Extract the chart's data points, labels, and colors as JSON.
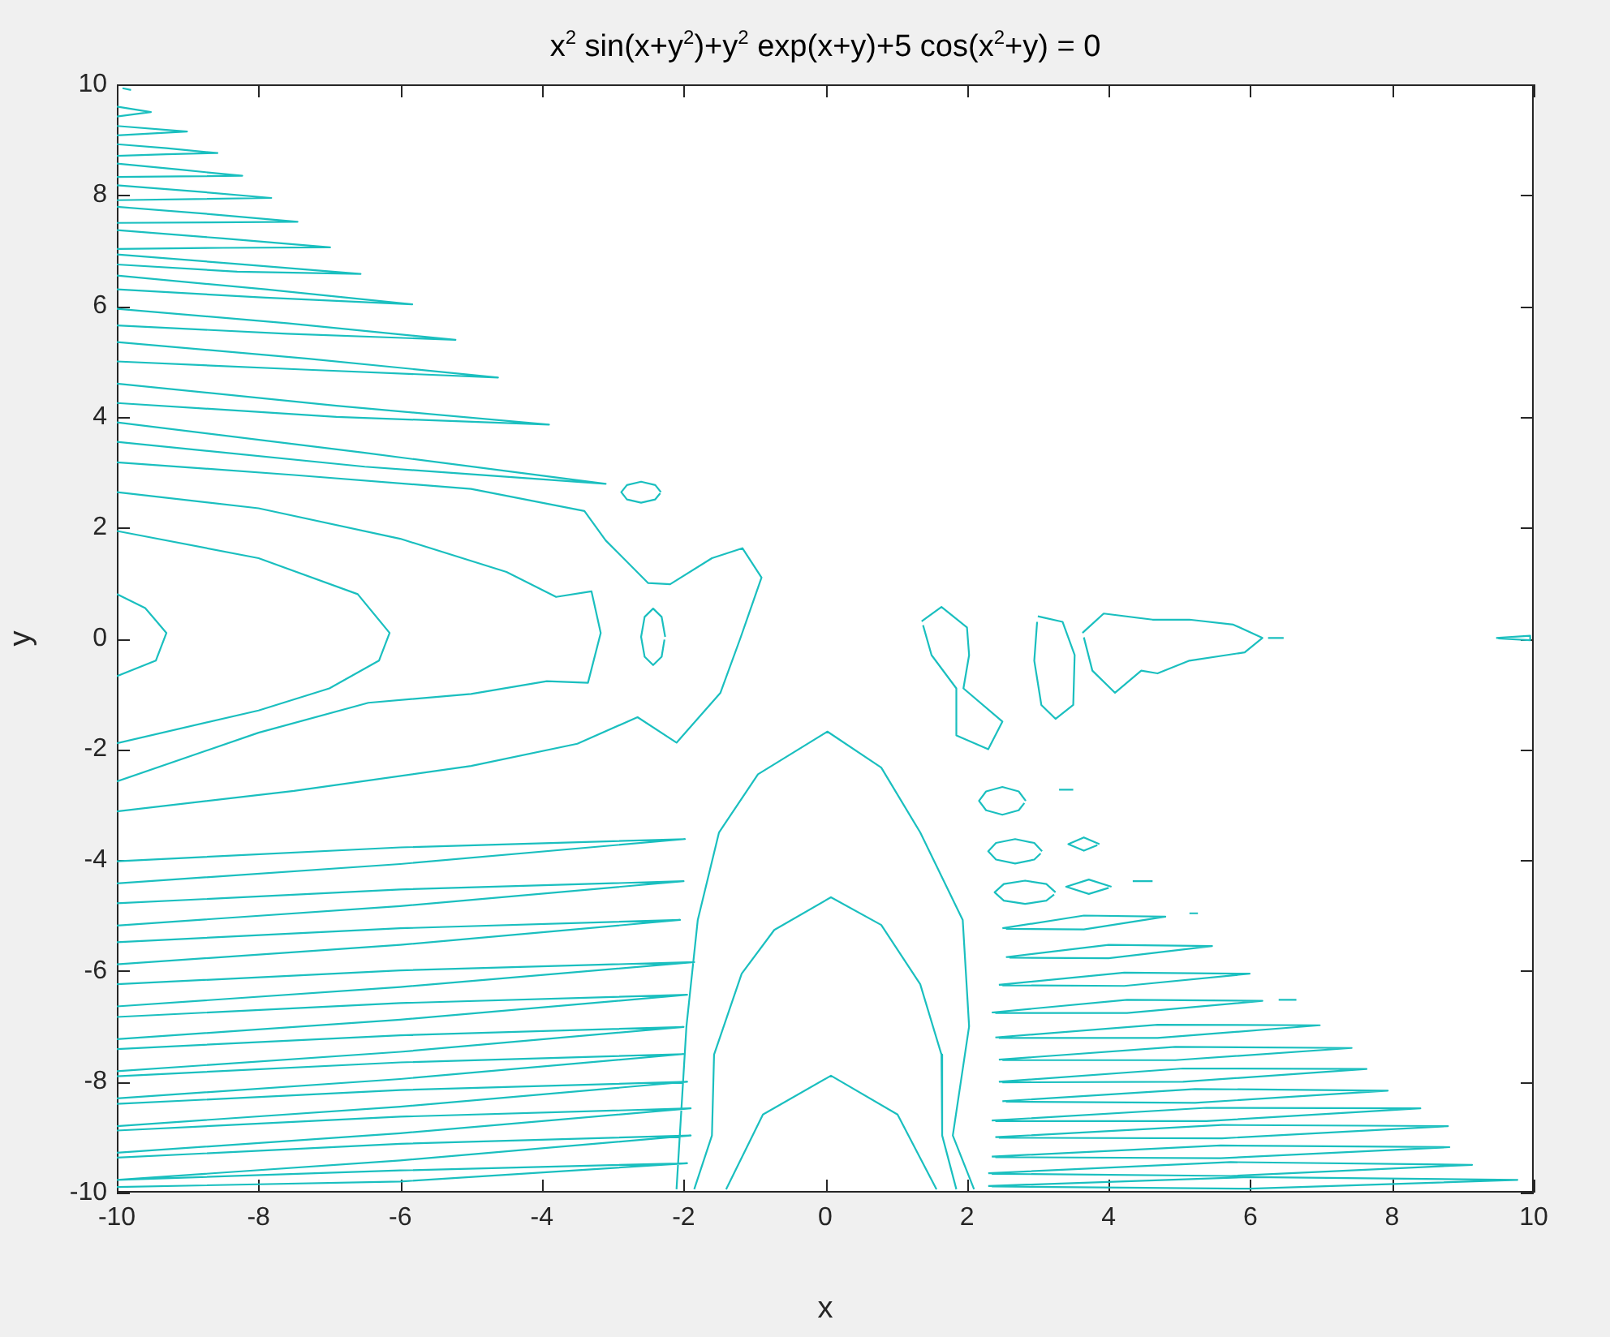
{
  "chart_data": {
    "type": "line",
    "title": "x$^{2}$ sin(x+y$^{2}$)+y$^{2}$ exp(x+y)+5 cos(x$^{2}$+y) = 0",
    "xlabel": "x",
    "ylabel": "y",
    "xlim": [
      -10,
      10
    ],
    "ylim": [
      -10,
      10
    ],
    "xticks": [
      -10,
      -8,
      -6,
      -4,
      -2,
      0,
      2,
      4,
      6,
      8,
      10
    ],
    "yticks": [
      -10,
      -8,
      -6,
      -4,
      -2,
      0,
      2,
      4,
      6,
      8,
      10
    ],
    "series": [
      {
        "color": "#1abfbf",
        "x": [
          -9.92,
          -9.8,
          null,
          -10,
          -9.52,
          -10,
          null,
          -10,
          -9.01,
          -10,
          null,
          -10,
          -9.3,
          -8.58,
          -9.3,
          -10,
          null,
          -10,
          -9.1,
          -8.23,
          -9.1,
          -10,
          null,
          -10,
          -8.9,
          -7.82,
          -8.9,
          -10,
          null,
          -10,
          -8.7,
          -7.45,
          -8.7,
          -10,
          null,
          -10,
          -8.5,
          -6.99,
          -8.5,
          -10,
          null,
          -10,
          -8.3,
          -6.56,
          -8.3,
          -10,
          null,
          -10,
          -7.9,
          -5.83,
          -7.9,
          -10,
          null,
          -10,
          -7.6,
          -5.22,
          -7.6,
          -10,
          null,
          -10,
          -7.3,
          -4.62,
          -7.3,
          -10,
          null,
          -10,
          -6.9,
          -3.9,
          -6.9,
          -10,
          null,
          -10,
          -6.5,
          -3.1,
          -6.5,
          -10,
          null,
          -10,
          -8,
          -6.6,
          -6.15,
          -6.3,
          -7,
          -8,
          -10,
          null,
          -10,
          -8,
          -6,
          -4.5,
          -3.8,
          -3.3,
          -3.17,
          -3.35,
          -3.93,
          -5,
          -6.45,
          -8,
          -10,
          null,
          -10,
          -7.5,
          -5,
          -3.4,
          -3.1,
          -2.5,
          -2.19,
          -1.6,
          -1.17,
          -0.9,
          -1.2,
          -1.48,
          -2.1,
          -2.65,
          -3.5,
          -5,
          -7.5,
          -10,
          null,
          -10,
          -9.6,
          -9.3,
          -9.45,
          -10,
          null,
          -10,
          -6,
          -1.98,
          -6,
          -10,
          null,
          -10,
          -6,
          -2.0,
          -6,
          -10,
          null,
          -10,
          -6,
          -2.05,
          -6,
          -10,
          null,
          -10,
          -6,
          -1.85,
          -6,
          -10,
          null,
          -10,
          -6,
          -1.95,
          -6,
          -10,
          null,
          -10,
          -6,
          -2.0,
          -6,
          -10,
          null,
          -10,
          -6,
          -2.0,
          -6,
          -10,
          null,
          -10,
          -6,
          -1.95,
          -6,
          -10,
          null,
          -10,
          -6,
          -1.9,
          -6,
          -10,
          null,
          -10,
          -6,
          -1.9,
          -6,
          -10,
          null,
          -10,
          -6,
          -1.95,
          -6,
          -10,
          null,
          -2.1,
          -1.96,
          -1.8,
          -1.5,
          -0.95,
          0.03,
          0.79,
          1.34,
          1.94,
          2.03,
          1.8,
          2.1,
          null,
          -1.85,
          -1.6,
          -1.57,
          -1.18,
          -0.72,
          0.08,
          0.79,
          1.34,
          1.64,
          1.65,
          1.85,
          null,
          -1.4,
          -0.88,
          0.08,
          1.02,
          1.57,
          null,
          -2.32,
          -2.4,
          -2.6,
          -2.8,
          -2.88,
          -2.8,
          -2.6,
          -2.4,
          -2.33,
          null,
          -2.26,
          -2.31,
          -2.43,
          -2.55,
          -2.6,
          -2.55,
          -2.43,
          -2.31,
          -2.27,
          null,
          1.36,
          1.64,
          2.0,
          2.03,
          1.95,
          2.5,
          2.3,
          1.85,
          1.85,
          1.5,
          1.38,
          null,
          3.0,
          3.35,
          3.52,
          3.5,
          3.25,
          3.05,
          2.95,
          2.99,
          null,
          3.63,
          3.93,
          4.62,
          5.14,
          5.76,
          6.17,
          5.92,
          5.14,
          4.69,
          4.46,
          4.09,
          3.77,
          3.65,
          null,
          6.25,
          6.47,
          null,
          9.47,
          9.95,
          9.95,
          9.5,
          null,
          2.83,
          2.73,
          2.5,
          2.27,
          2.17,
          2.27,
          2.5,
          2.73,
          2.81,
          null,
          3.3,
          3.5,
          null,
          3.06,
          2.95,
          2.68,
          2.41,
          2.3,
          2.41,
          2.68,
          2.95,
          3.04,
          null,
          3.87,
          3.65,
          3.43,
          3.65,
          3.84,
          null,
          3.25,
          3.12,
          2.82,
          2.52,
          2.39,
          2.52,
          2.82,
          3.12,
          3.23,
          null,
          4.04,
          3.72,
          3.4,
          3.72,
          4.0,
          null,
          4.34,
          4.62,
          null,
          5.14,
          5.26,
          null,
          6.4,
          6.65,
          null,
          2.5,
          3.65,
          4.8,
          3.65,
          2.55,
          null,
          2.55,
          4.0,
          5.46,
          4.0,
          2.6,
          null,
          2.45,
          4.22,
          5.99,
          4.22,
          2.5,
          null,
          2.35,
          4.26,
          6.17,
          4.26,
          2.4,
          null,
          2.4,
          4.69,
          6.98,
          4.69,
          2.45,
          null,
          2.45,
          4.94,
          7.43,
          4.94,
          2.5,
          null,
          2.45,
          5.05,
          7.64,
          5.05,
          2.5,
          null,
          2.5,
          5.22,
          7.94,
          5.22,
          2.55,
          null,
          2.35,
          5.38,
          8.4,
          5.38,
          2.4,
          null,
          2.4,
          5.6,
          8.79,
          5.6,
          2.45,
          null,
          2.35,
          5.58,
          8.81,
          5.58,
          2.4,
          null,
          2.3,
          5.72,
          9.13,
          5.72,
          2.35,
          null,
          2.3,
          6.0,
          9.77,
          6.0,
          2.35
        ],
        "values": [
          9.93,
          9.9,
          null,
          9.6,
          9.5,
          9.42,
          null,
          9.25,
          9.15,
          9.08,
          null,
          8.92,
          8.85,
          8.76,
          8.74,
          8.71,
          null,
          8.57,
          8.46,
          8.35,
          8.34,
          8.33,
          null,
          8.18,
          8.07,
          7.95,
          7.93,
          7.91,
          null,
          7.79,
          7.66,
          7.52,
          7.51,
          7.5,
          null,
          7.37,
          7.22,
          7.06,
          7.05,
          7.03,
          null,
          6.93,
          6.76,
          6.58,
          6.62,
          6.75,
          null,
          6.55,
          6.3,
          6.03,
          6.15,
          6.3,
          null,
          5.95,
          5.69,
          5.39,
          5.5,
          5.65,
          null,
          5.35,
          5.05,
          4.71,
          4.85,
          5.0,
          null,
          4.6,
          4.2,
          3.86,
          4.0,
          4.25,
          null,
          3.9,
          3.35,
          2.79,
          3.1,
          3.55,
          null,
          1.94,
          1.45,
          0.8,
          0.1,
          -0.4,
          -0.9,
          -1.3,
          -1.89,
          null,
          2.64,
          2.35,
          1.8,
          1.2,
          0.75,
          0.85,
          0.1,
          -0.8,
          -0.77,
          -1.0,
          -1.16,
          -1.7,
          -2.58,
          null,
          3.18,
          2.95,
          2.7,
          2.3,
          1.77,
          1.0,
          0.98,
          1.45,
          1.63,
          1.1,
          0,
          -0.98,
          -1.88,
          -1.42,
          -1.9,
          -2.3,
          -2.75,
          -3.12,
          null,
          0.8,
          0.55,
          0.1,
          -0.4,
          -0.68,
          null,
          -4.02,
          -3.77,
          -3.62,
          -4.07,
          -4.42,
          null,
          -4.78,
          -4.53,
          -4.38,
          -4.83,
          -5.18,
          null,
          -5.48,
          -5.23,
          -5.08,
          -5.53,
          -5.88,
          null,
          -6.24,
          -5.99,
          -5.84,
          -6.29,
          -6.64,
          null,
          -6.83,
          -6.58,
          -6.43,
          -6.88,
          -7.23,
          null,
          -7.41,
          -7.16,
          -7.01,
          -7.46,
          -7.81,
          null,
          -7.9,
          -7.65,
          -7.5,
          -7.95,
          -8.3,
          null,
          -8.4,
          -8.15,
          -8.0,
          -8.45,
          -8.8,
          null,
          -8.88,
          -8.63,
          -8.48,
          -8.93,
          -9.28,
          null,
          -9.37,
          -9.12,
          -8.97,
          -9.42,
          -9.77,
          null,
          -9.77,
          -9.6,
          -9.47,
          -9.8,
          -9.9,
          null,
          -9.94,
          -7.0,
          -5.08,
          -3.5,
          -2.45,
          -1.68,
          -2.33,
          -3.5,
          -5.08,
          -7.0,
          -8.97,
          -9.94,
          null,
          -9.94,
          -8.97,
          -7.51,
          -6.05,
          -5.26,
          -4.67,
          -5.17,
          -6.24,
          -7.51,
          -8.97,
          -9.94,
          null,
          -9.94,
          -8.59,
          -7.89,
          -8.59,
          -9.94,
          null,
          2.64,
          2.77,
          2.83,
          2.77,
          2.64,
          2.51,
          2.45,
          2.51,
          2.62,
          null,
          0.03,
          0.39,
          0.54,
          0.39,
          0.03,
          -0.33,
          -0.48,
          -0.33,
          -0.02,
          null,
          0.31,
          0.57,
          0.2,
          -0.3,
          -0.9,
          -1.5,
          -2.0,
          -1.75,
          -0.9,
          -0.3,
          0.24,
          null,
          0.4,
          0.3,
          -0.3,
          -1.2,
          -1.45,
          -1.2,
          -0.4,
          0.3,
          null,
          0.1,
          0.45,
          0.34,
          0.34,
          0.25,
          0.01,
          -0.25,
          -0.4,
          -0.63,
          -0.58,
          -0.98,
          -0.58,
          0.02,
          null,
          0.01,
          0.01,
          null,
          0.01,
          0.05,
          -0.03,
          0.0,
          null,
          -2.93,
          -2.76,
          -2.68,
          -2.76,
          -2.93,
          -3.1,
          -3.18,
          -3.1,
          -2.97,
          null,
          -2.73,
          -2.73,
          null,
          -3.84,
          -3.69,
          -3.62,
          -3.69,
          -3.84,
          -3.99,
          -4.06,
          -3.99,
          -3.88,
          null,
          -3.71,
          -3.59,
          -3.71,
          -3.83,
          -3.73,
          null,
          -4.58,
          -4.43,
          -4.37,
          -4.43,
          -4.58,
          -4.73,
          -4.79,
          -4.73,
          -4.62,
          null,
          -4.48,
          -4.35,
          -4.48,
          -4.61,
          -4.5,
          null,
          -4.38,
          -4.38,
          null,
          -4.96,
          -4.96,
          null,
          -6.52,
          -6.52,
          null,
          -5.23,
          -5.0,
          -5.02,
          -5.25,
          -5.24,
          null,
          -5.75,
          -5.53,
          -5.55,
          -5.77,
          -5.76,
          null,
          -6.25,
          -6.03,
          -6.05,
          -6.27,
          -6.26,
          null,
          -6.75,
          -6.52,
          -6.54,
          -6.76,
          -6.76,
          null,
          -7.2,
          -6.97,
          -6.98,
          -7.21,
          -7.21,
          null,
          -7.6,
          -7.37,
          -7.39,
          -7.61,
          -7.61,
          null,
          -8.0,
          -7.76,
          -7.77,
          -8.0,
          -8.01,
          null,
          -8.35,
          -8.13,
          -8.16,
          -8.38,
          -8.36,
          null,
          -8.7,
          -8.47,
          -8.48,
          -8.71,
          -8.71,
          null,
          -9.0,
          -8.78,
          -8.8,
          -9.02,
          -9.01,
          null,
          -9.35,
          -9.15,
          -9.18,
          -9.38,
          -9.36,
          null,
          -9.65,
          -9.45,
          -9.5,
          -9.7,
          -9.66,
          null,
          -9.88,
          -9.72,
          -9.77,
          -9.93,
          -9.89
        ]
      }
    ]
  }
}
